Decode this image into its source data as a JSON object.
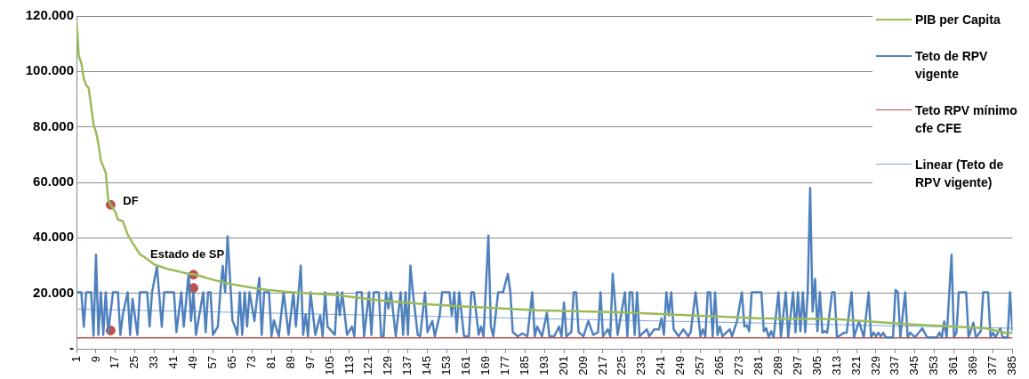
{
  "chart_data": {
    "type": "line",
    "xlim": [
      1,
      385
    ],
    "xticks": [
      1,
      9,
      17,
      25,
      33,
      41,
      49,
      57,
      65,
      73,
      81,
      89,
      97,
      105,
      113,
      121,
      129,
      137,
      145,
      153,
      161,
      169,
      177,
      185,
      193,
      201,
      209,
      217,
      225,
      233,
      241,
      249,
      257,
      265,
      273,
      281,
      289,
      297,
      305,
      313,
      321,
      329,
      337,
      345,
      353,
      361,
      369,
      377,
      385
    ],
    "ylim": [
      0,
      120000
    ],
    "yticks": [
      {
        "value": 0,
        "label": "-"
      },
      {
        "value": 20000,
        "label": "20.000"
      },
      {
        "value": 40000,
        "label": "40.000"
      },
      {
        "value": 60000,
        "label": "60.000"
      },
      {
        "value": 80000,
        "label": "80.000"
      },
      {
        "value": 100000,
        "label": "100.000"
      },
      {
        "value": 120000,
        "label": "120.000"
      }
    ],
    "grid": "y",
    "legend": "top right",
    "marker": "none",
    "line_style": "solid",
    "series": [
      {
        "name": "PIB per Capita",
        "color": "#9bbb59",
        "x": [
          1,
          2,
          3,
          4,
          5,
          6,
          8,
          9,
          10,
          11,
          13,
          14,
          15,
          17,
          18,
          20,
          22,
          24,
          27,
          29,
          33,
          38,
          42,
          47,
          50,
          55,
          62,
          69,
          76,
          87,
          107,
          125,
          143,
          176,
          190,
          227,
          251,
          281,
          313,
          343,
          374,
          382,
          385
        ],
        "values": [
          118200,
          105400,
          103000,
          97300,
          95100,
          94000,
          80900,
          78200,
          73900,
          67900,
          63500,
          53700,
          51900,
          49300,
          46600,
          46000,
          41200,
          38200,
          34100,
          33000,
          30300,
          28900,
          28100,
          27000,
          26700,
          25400,
          23700,
          22600,
          21600,
          20500,
          19400,
          17500,
          16100,
          14500,
          13900,
          13100,
          12100,
          11000,
          10700,
          8800,
          7400,
          5800,
          5700
        ]
      },
      {
        "name": "Teto de RPV vigente",
        "color": "#4f81bd",
        "x": [
          1,
          3,
          4,
          5,
          7,
          8,
          9,
          10,
          11,
          12,
          13,
          14,
          16,
          18,
          19,
          20,
          22,
          23,
          24,
          26,
          27,
          30,
          31,
          32,
          34,
          36,
          37,
          41,
          42,
          44,
          45,
          47,
          48,
          49,
          50,
          53,
          54,
          55,
          56,
          57,
          59,
          60,
          61,
          62,
          63,
          65,
          66,
          67,
          68,
          69,
          70,
          71,
          72,
          74,
          76,
          77,
          78,
          80,
          81,
          82,
          84,
          86,
          88,
          90,
          91,
          93,
          94,
          95,
          96,
          97,
          99,
          101,
          102,
          103,
          104,
          107,
          108,
          109,
          110,
          112,
          114,
          115,
          116,
          118,
          119,
          121,
          122,
          123,
          125,
          126,
          127,
          128,
          129,
          130,
          132,
          134,
          135,
          136,
          137,
          138,
          139,
          141,
          142,
          144,
          145,
          147,
          148,
          150,
          151,
          154,
          155,
          156,
          157,
          158,
          160,
          162,
          163,
          164,
          166,
          167,
          168,
          170,
          171,
          172,
          174,
          176,
          178,
          179,
          180,
          182,
          184,
          186,
          188,
          189,
          190,
          192,
          194,
          195,
          197,
          199,
          200,
          201,
          202,
          204,
          205,
          206,
          207,
          209,
          211,
          213,
          215,
          216,
          217,
          219,
          220,
          221,
          223,
          224,
          226,
          227,
          228,
          229,
          230,
          231,
          232,
          235,
          236,
          238,
          240,
          241,
          242,
          243,
          244,
          245,
          246,
          248,
          250,
          252,
          253,
          255,
          257,
          258,
          259,
          260,
          261,
          262,
          263,
          264,
          265,
          266,
          269,
          270,
          272,
          274,
          275,
          276,
          277,
          278,
          282,
          283,
          284,
          285,
          286,
          287,
          289,
          290,
          292,
          293,
          295,
          296,
          297,
          298,
          299,
          300,
          301,
          302,
          303,
          304,
          305,
          306,
          307,
          308,
          309,
          311,
          312,
          313,
          316,
          317,
          319,
          320,
          322,
          324,
          326,
          327,
          328,
          329,
          330,
          331,
          332,
          333,
          336,
          337,
          338,
          339,
          341,
          342,
          343,
          345,
          348,
          350,
          354,
          355,
          356,
          357,
          358,
          360,
          361,
          362,
          363,
          366,
          367,
          369,
          370,
          372,
          373,
          375,
          376,
          377,
          378,
          380,
          381,
          383,
          384,
          385
        ],
        "values": [
          20400,
          20400,
          7900,
          20400,
          20400,
          4700,
          33900,
          5000,
          20400,
          5000,
          20400,
          6000,
          20400,
          20400,
          5000,
          12300,
          20400,
          5000,
          18000,
          5000,
          20400,
          20400,
          8000,
          20400,
          29700,
          7900,
          20400,
          20400,
          6000,
          20400,
          8000,
          27100,
          10000,
          20400,
          5000,
          20400,
          6000,
          20400,
          20400,
          5000,
          8000,
          20400,
          29900,
          20400,
          40600,
          10100,
          8000,
          5000,
          20400,
          5000,
          20400,
          8000,
          20400,
          10000,
          25600,
          5000,
          20400,
          20400,
          4500,
          10300,
          4500,
          20400,
          5000,
          20400,
          8000,
          30000,
          5000,
          12400,
          4500,
          20400,
          5000,
          12000,
          4500,
          20400,
          8000,
          5000,
          20400,
          12000,
          20400,
          5000,
          8000,
          4500,
          20400,
          20400,
          4500,
          20400,
          5000,
          20400,
          20400,
          4500,
          4500,
          20400,
          14500,
          20400,
          4500,
          20400,
          5000,
          20400,
          5000,
          30000,
          20400,
          5000,
          4500,
          20400,
          6000,
          10000,
          4500,
          12000,
          20400,
          20400,
          12000,
          20400,
          6000,
          20400,
          4500,
          4500,
          20400,
          20400,
          5000,
          8000,
          4500,
          40800,
          8000,
          4500,
          20400,
          20400,
          27000,
          20400,
          6000,
          4500,
          5500,
          4500,
          20400,
          4500,
          8000,
          4500,
          13000,
          4500,
          4500,
          8000,
          4500,
          16700,
          4500,
          6000,
          20400,
          20400,
          6000,
          4500,
          10000,
          5000,
          6000,
          20400,
          4500,
          7000,
          4500,
          27000,
          5000,
          10000,
          20400,
          4500,
          20400,
          20400,
          5000,
          20400,
          4500,
          7000,
          4500,
          7000,
          7000,
          11000,
          5000,
          20400,
          12000,
          20400,
          7000,
          4500,
          7000,
          4500,
          6000,
          20400,
          4500,
          7000,
          4500,
          20400,
          20400,
          4500,
          20400,
          5000,
          8000,
          4500,
          7000,
          4500,
          10000,
          20400,
          8000,
          8500,
          6300,
          20400,
          20400,
          6300,
          7400,
          4100,
          6300,
          4100,
          20400,
          4100,
          20400,
          4100,
          20400,
          5900,
          20400,
          6300,
          20400,
          5900,
          20400,
          58000,
          13400,
          25200,
          6300,
          20400,
          5800,
          6300,
          5800,
          20400,
          20400,
          4100,
          5800,
          5800,
          20400,
          4100,
          9900,
          4100,
          20400,
          4100,
          5800,
          4500,
          5800,
          4500,
          5800,
          4100,
          4100,
          21200,
          20400,
          4100,
          20400,
          4100,
          5800,
          4100,
          7400,
          4100,
          4100,
          5800,
          4100,
          9900,
          4100,
          33900,
          4100,
          5800,
          20400,
          20400,
          4100,
          9400,
          4100,
          6300,
          20400,
          20400,
          4100,
          5800,
          4100,
          7400,
          4100,
          4100,
          20400,
          6300
        ]
      },
      {
        "name": "Teto RPV mínimo cfe CFE",
        "color": "#c0504d",
        "x": [
          1,
          385
        ],
        "values": [
          3900,
          3900
        ]
      },
      {
        "name": "Linear (Teto de RPV vigente)",
        "color": "#7fa7d9",
        "x": [
          1,
          385
        ],
        "values": [
          14300,
          7400
        ]
      },
      {
        "type": "scatter",
        "color": "#c0504d",
        "marker": "circle",
        "x": [
          15,
          15,
          49,
          49
        ],
        "values": [
          51900,
          6600,
          26700,
          21900
        ]
      }
    ],
    "annotations": [
      {
        "text": "DF",
        "x": 15,
        "y": 51900
      },
      {
        "text": "Estado de SP",
        "x": 49,
        "y": 26700
      }
    ]
  }
}
